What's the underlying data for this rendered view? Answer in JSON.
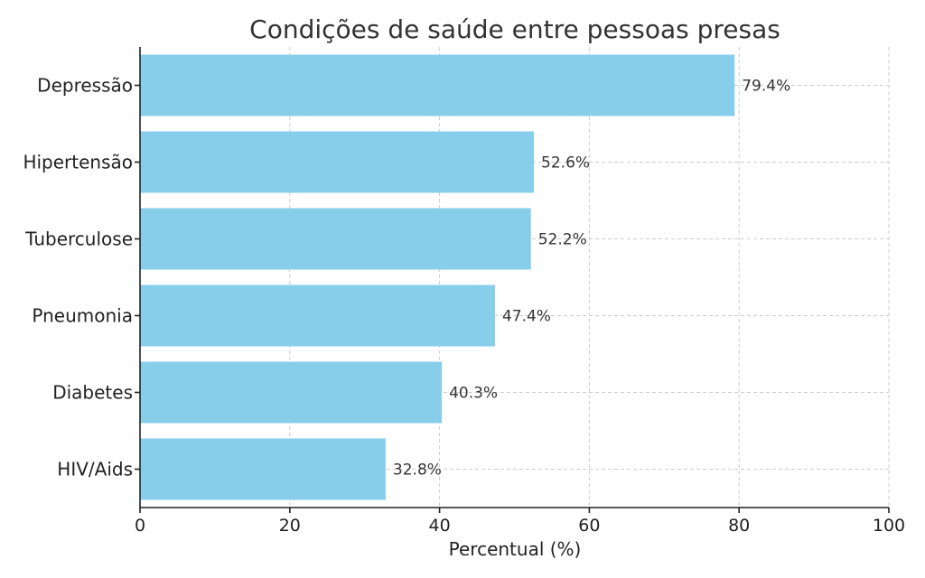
{
  "chart_data": {
    "type": "bar",
    "orientation": "horizontal",
    "title": "Condições de saúde entre pessoas presas",
    "xlabel": "Percentual (%)",
    "ylabel": "",
    "xlim": [
      0,
      100
    ],
    "xticks": [
      "0",
      "20",
      "40",
      "60",
      "80",
      "100"
    ],
    "grid": true,
    "categories": [
      "Depressão",
      "Hipertensão",
      "Tuberculose",
      "Pneumonia",
      "Diabetes",
      "HIV/Aids"
    ],
    "values": [
      79.4,
      52.6,
      52.2,
      47.4,
      40.3,
      32.8
    ],
    "value_labels": [
      "79.4%",
      "52.6%",
      "52.2%",
      "47.4%",
      "40.3%",
      "32.8%"
    ],
    "bar_color": "#87ceeb"
  }
}
